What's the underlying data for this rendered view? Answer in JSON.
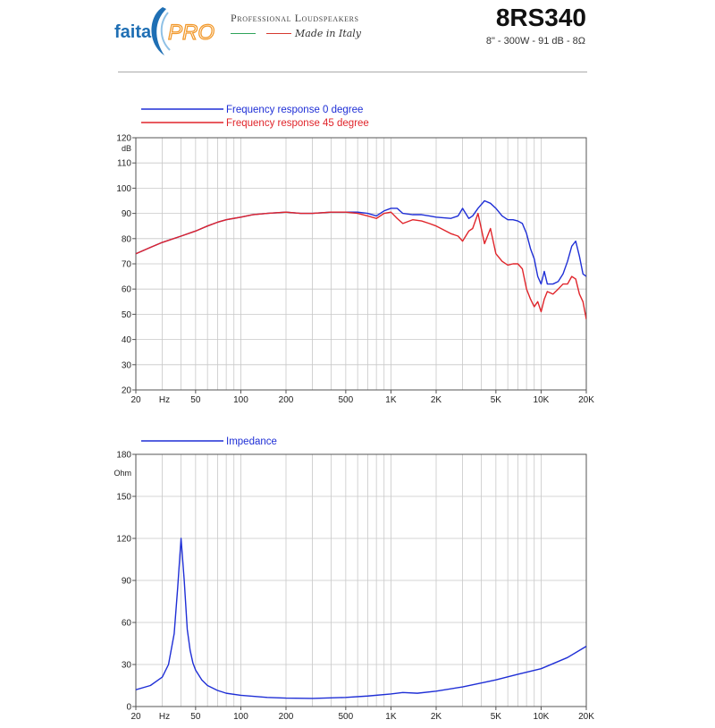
{
  "header": {
    "brand_text": "faital",
    "brand_pro": "PRO",
    "tagline": "Professional Loudspeakers",
    "made_in": "Made in Italy",
    "model": "8RS340",
    "specs": "8\" - 300W - 91 dB - 8Ω",
    "colors": {
      "brand_blue": "#1f6fb4",
      "pro_orange": "#f29a2e",
      "green": "#2ea35a",
      "red": "#d63a2f"
    }
  },
  "chart_data": [
    {
      "type": "line",
      "xscale": "log",
      "xlim": [
        20,
        20000
      ],
      "ylim": [
        20,
        120
      ],
      "ylabel": "dB",
      "grid": true,
      "legend_position": "top-left",
      "x_ticks": [
        20,
        50,
        100,
        200,
        500,
        1000,
        2000,
        5000,
        10000,
        20000
      ],
      "x_tick_labels": [
        "20",
        "50",
        "100",
        "200",
        "500",
        "1K",
        "2K",
        "5K",
        "10K",
        "20K"
      ],
      "x_unit_label": "Hz",
      "y_ticks": [
        20,
        30,
        40,
        50,
        60,
        70,
        80,
        90,
        100,
        110,
        120
      ],
      "y_tick_labels": [
        "20",
        "30",
        "40",
        "50",
        "60",
        "70",
        "80",
        "90",
        "100",
        "110",
        "120"
      ],
      "series": [
        {
          "name": "Frequency response 0 degree",
          "color": "#1f2fd6",
          "x": [
            20,
            25,
            30,
            40,
            50,
            60,
            70,
            80,
            100,
            120,
            150,
            200,
            250,
            300,
            400,
            500,
            600,
            700,
            800,
            900,
            1000,
            1100,
            1200,
            1400,
            1600,
            1800,
            2000,
            2500,
            2800,
            3000,
            3300,
            3500,
            3800,
            4200,
            4600,
            5000,
            5500,
            6000,
            6500,
            7000,
            7500,
            8000,
            8500,
            9000,
            9500,
            10000,
            10500,
            11000,
            12000,
            13000,
            14000,
            15000,
            16000,
            17000,
            18000,
            19000,
            20000
          ],
          "y": [
            74,
            76.5,
            78.5,
            81,
            83,
            85,
            86.5,
            87.5,
            88.5,
            89.5,
            90,
            90.5,
            90,
            90,
            90.5,
            90.5,
            90.5,
            90,
            89,
            91,
            92,
            92,
            90,
            89.5,
            89.5,
            89,
            88.5,
            88,
            89,
            92,
            88,
            89,
            92,
            95,
            94,
            92,
            89,
            87.5,
            87.5,
            87,
            86,
            82,
            76,
            72,
            65,
            62,
            67,
            62,
            62,
            63,
            66,
            71,
            77,
            79,
            73,
            66,
            65
          ]
        },
        {
          "name": "Frequency response 45 degree",
          "color": "#e0252b",
          "x": [
            20,
            25,
            30,
            40,
            50,
            60,
            70,
            80,
            100,
            120,
            150,
            200,
            250,
            300,
            400,
            500,
            600,
            700,
            800,
            900,
            1000,
            1100,
            1200,
            1400,
            1600,
            1800,
            2000,
            2500,
            2800,
            3000,
            3300,
            3500,
            3800,
            4200,
            4600,
            5000,
            5500,
            6000,
            6500,
            7000,
            7500,
            8000,
            8500,
            9000,
            9500,
            10000,
            10500,
            11000,
            12000,
            13000,
            14000,
            15000,
            16000,
            17000,
            18000,
            19000,
            20000
          ],
          "y": [
            74,
            76.5,
            78.5,
            81,
            83,
            85,
            86.5,
            87.5,
            88.5,
            89.5,
            90,
            90.5,
            90,
            90,
            90.5,
            90.5,
            90,
            89,
            88,
            90,
            90.5,
            88,
            86,
            87.5,
            87,
            86,
            85,
            82,
            81,
            79,
            83,
            84,
            90,
            78,
            84,
            74,
            71,
            69.5,
            70,
            70,
            68,
            60,
            56,
            53,
            55,
            51,
            56,
            59,
            58,
            60,
            62,
            62,
            65,
            64,
            58,
            55,
            48
          ]
        }
      ]
    },
    {
      "type": "line",
      "xscale": "log",
      "xlim": [
        20,
        20000
      ],
      "ylim": [
        0,
        180
      ],
      "ylabel": "Ohm",
      "grid": true,
      "legend_position": "top-left",
      "x_ticks": [
        20,
        50,
        100,
        200,
        500,
        1000,
        2000,
        5000,
        10000,
        20000
      ],
      "x_tick_labels": [
        "20",
        "50",
        "100",
        "200",
        "500",
        "1K",
        "2K",
        "5K",
        "10K",
        "20K"
      ],
      "x_unit_label": "Hz",
      "y_ticks": [
        0,
        30,
        60,
        90,
        120,
        150,
        180
      ],
      "y_tick_labels": [
        "0",
        "30",
        "60",
        "90",
        "120",
        "150",
        "180"
      ],
      "series": [
        {
          "name": "Impedance",
          "color": "#1f2fd6",
          "x": [
            20,
            25,
            30,
            33,
            36,
            38,
            40,
            42,
            44,
            46,
            48,
            50,
            55,
            60,
            70,
            80,
            100,
            150,
            200,
            300,
            500,
            700,
            1000,
            1200,
            1500,
            2000,
            3000,
            5000,
            7000,
            10000,
            15000,
            20000
          ],
          "y": [
            12,
            15,
            21,
            30,
            52,
            85,
            120,
            90,
            55,
            40,
            31,
            26,
            19,
            15,
            11.5,
            9.5,
            8,
            6.5,
            6,
            5.8,
            6.5,
            7.5,
            9,
            10,
            9.5,
            11,
            14,
            19,
            23,
            27,
            35,
            43
          ]
        }
      ]
    }
  ]
}
